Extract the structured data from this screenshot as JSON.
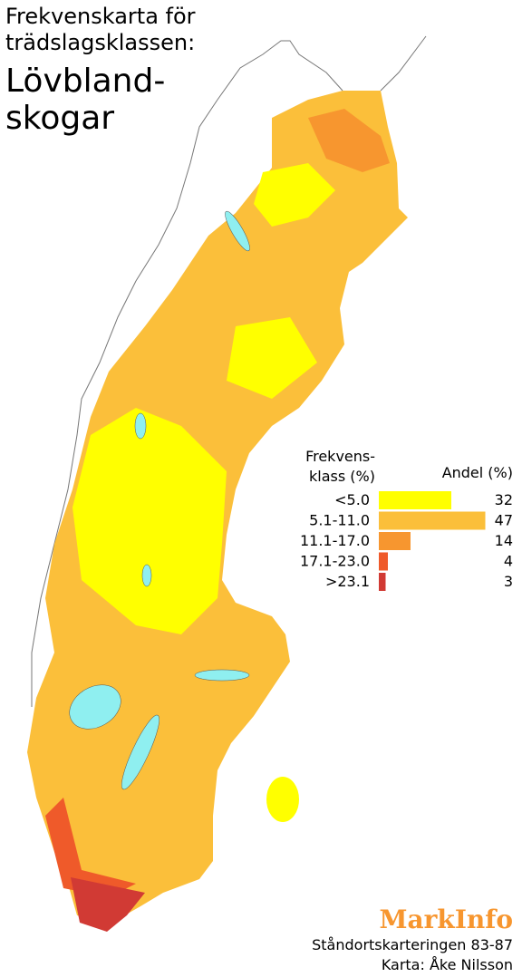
{
  "title": {
    "line1": "Frekvenskarta för",
    "line2": "trädslagsklassen:",
    "big1": "Lövbland-",
    "big2": "skogar"
  },
  "legend": {
    "class_header1": "Frekvens-",
    "class_header2": "klass (%)",
    "share_header": "Andel (%)",
    "classes": [
      {
        "label": "<5.0",
        "value": 32,
        "color": "#ffff00"
      },
      {
        "label": "5.1-11.0",
        "value": 47,
        "color": "#fbbf3a"
      },
      {
        "label": "11.1-17.0",
        "value": 14,
        "color": "#f7962f"
      },
      {
        "label": "17.1-23.0",
        "value": 4,
        "color": "#ef5a2a"
      },
      {
        "label": ">23.1",
        "value": 3,
        "color": "#d13a34"
      }
    ]
  },
  "credits": {
    "brand": "MarkInfo",
    "source": "Ståndortskarteringen 83-87",
    "author": "Karta: Åke Nilsson"
  }
}
